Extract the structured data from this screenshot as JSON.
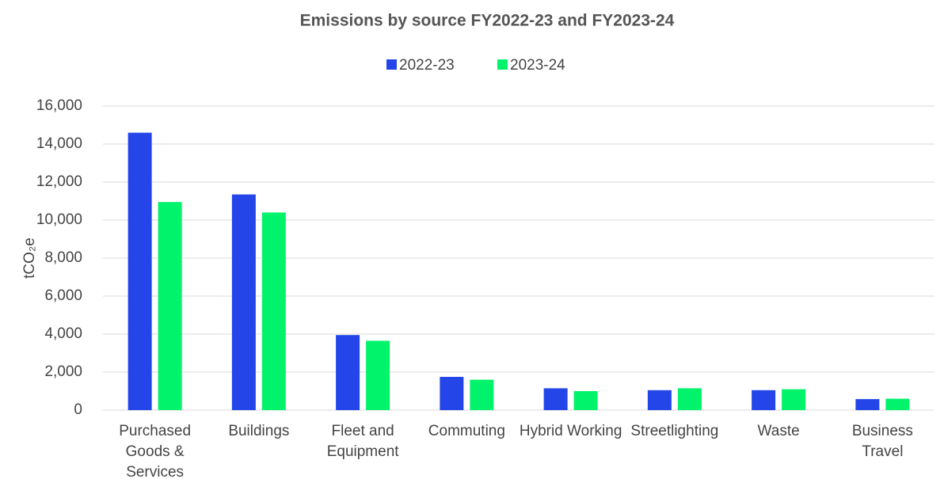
{
  "chart_data": {
    "type": "bar",
    "title": "Emissions by source FY2022-23 and FY2023-24",
    "y_label": "tCO₂e",
    "categories": [
      "Purchased Goods & Services",
      "Buildings",
      "Fleet and Equipment",
      "Commuting",
      "Hybrid Working",
      "Streetlighting",
      "Waste",
      "Business Travel"
    ],
    "series": [
      {
        "name": "2022-23",
        "color": "#2446e8",
        "values": [
          14600,
          11350,
          3950,
          1750,
          1150,
          1050,
          1050,
          580
        ]
      },
      {
        "name": "2023-24",
        "color": "#00f36a",
        "values": [
          10950,
          10400,
          3650,
          1600,
          1000,
          1150,
          1100,
          600
        ]
      }
    ],
    "ylim": [
      0,
      16000
    ],
    "yticks": [
      0,
      {
        "value": 2000,
        "label": "2,000"
      },
      {
        "value": 4000,
        "label": "4,000"
      },
      {
        "value": 6000,
        "label": "6,000"
      },
      {
        "value": 8000,
        "label": "8,000"
      },
      {
        "value": 10000,
        "label": "10,000"
      },
      {
        "value": 12000,
        "label": "12,000"
      },
      {
        "value": 14000,
        "label": "14,000"
      },
      {
        "value": 16000,
        "label": "16,000"
      }
    ],
    "grid": true,
    "legend": "top"
  }
}
